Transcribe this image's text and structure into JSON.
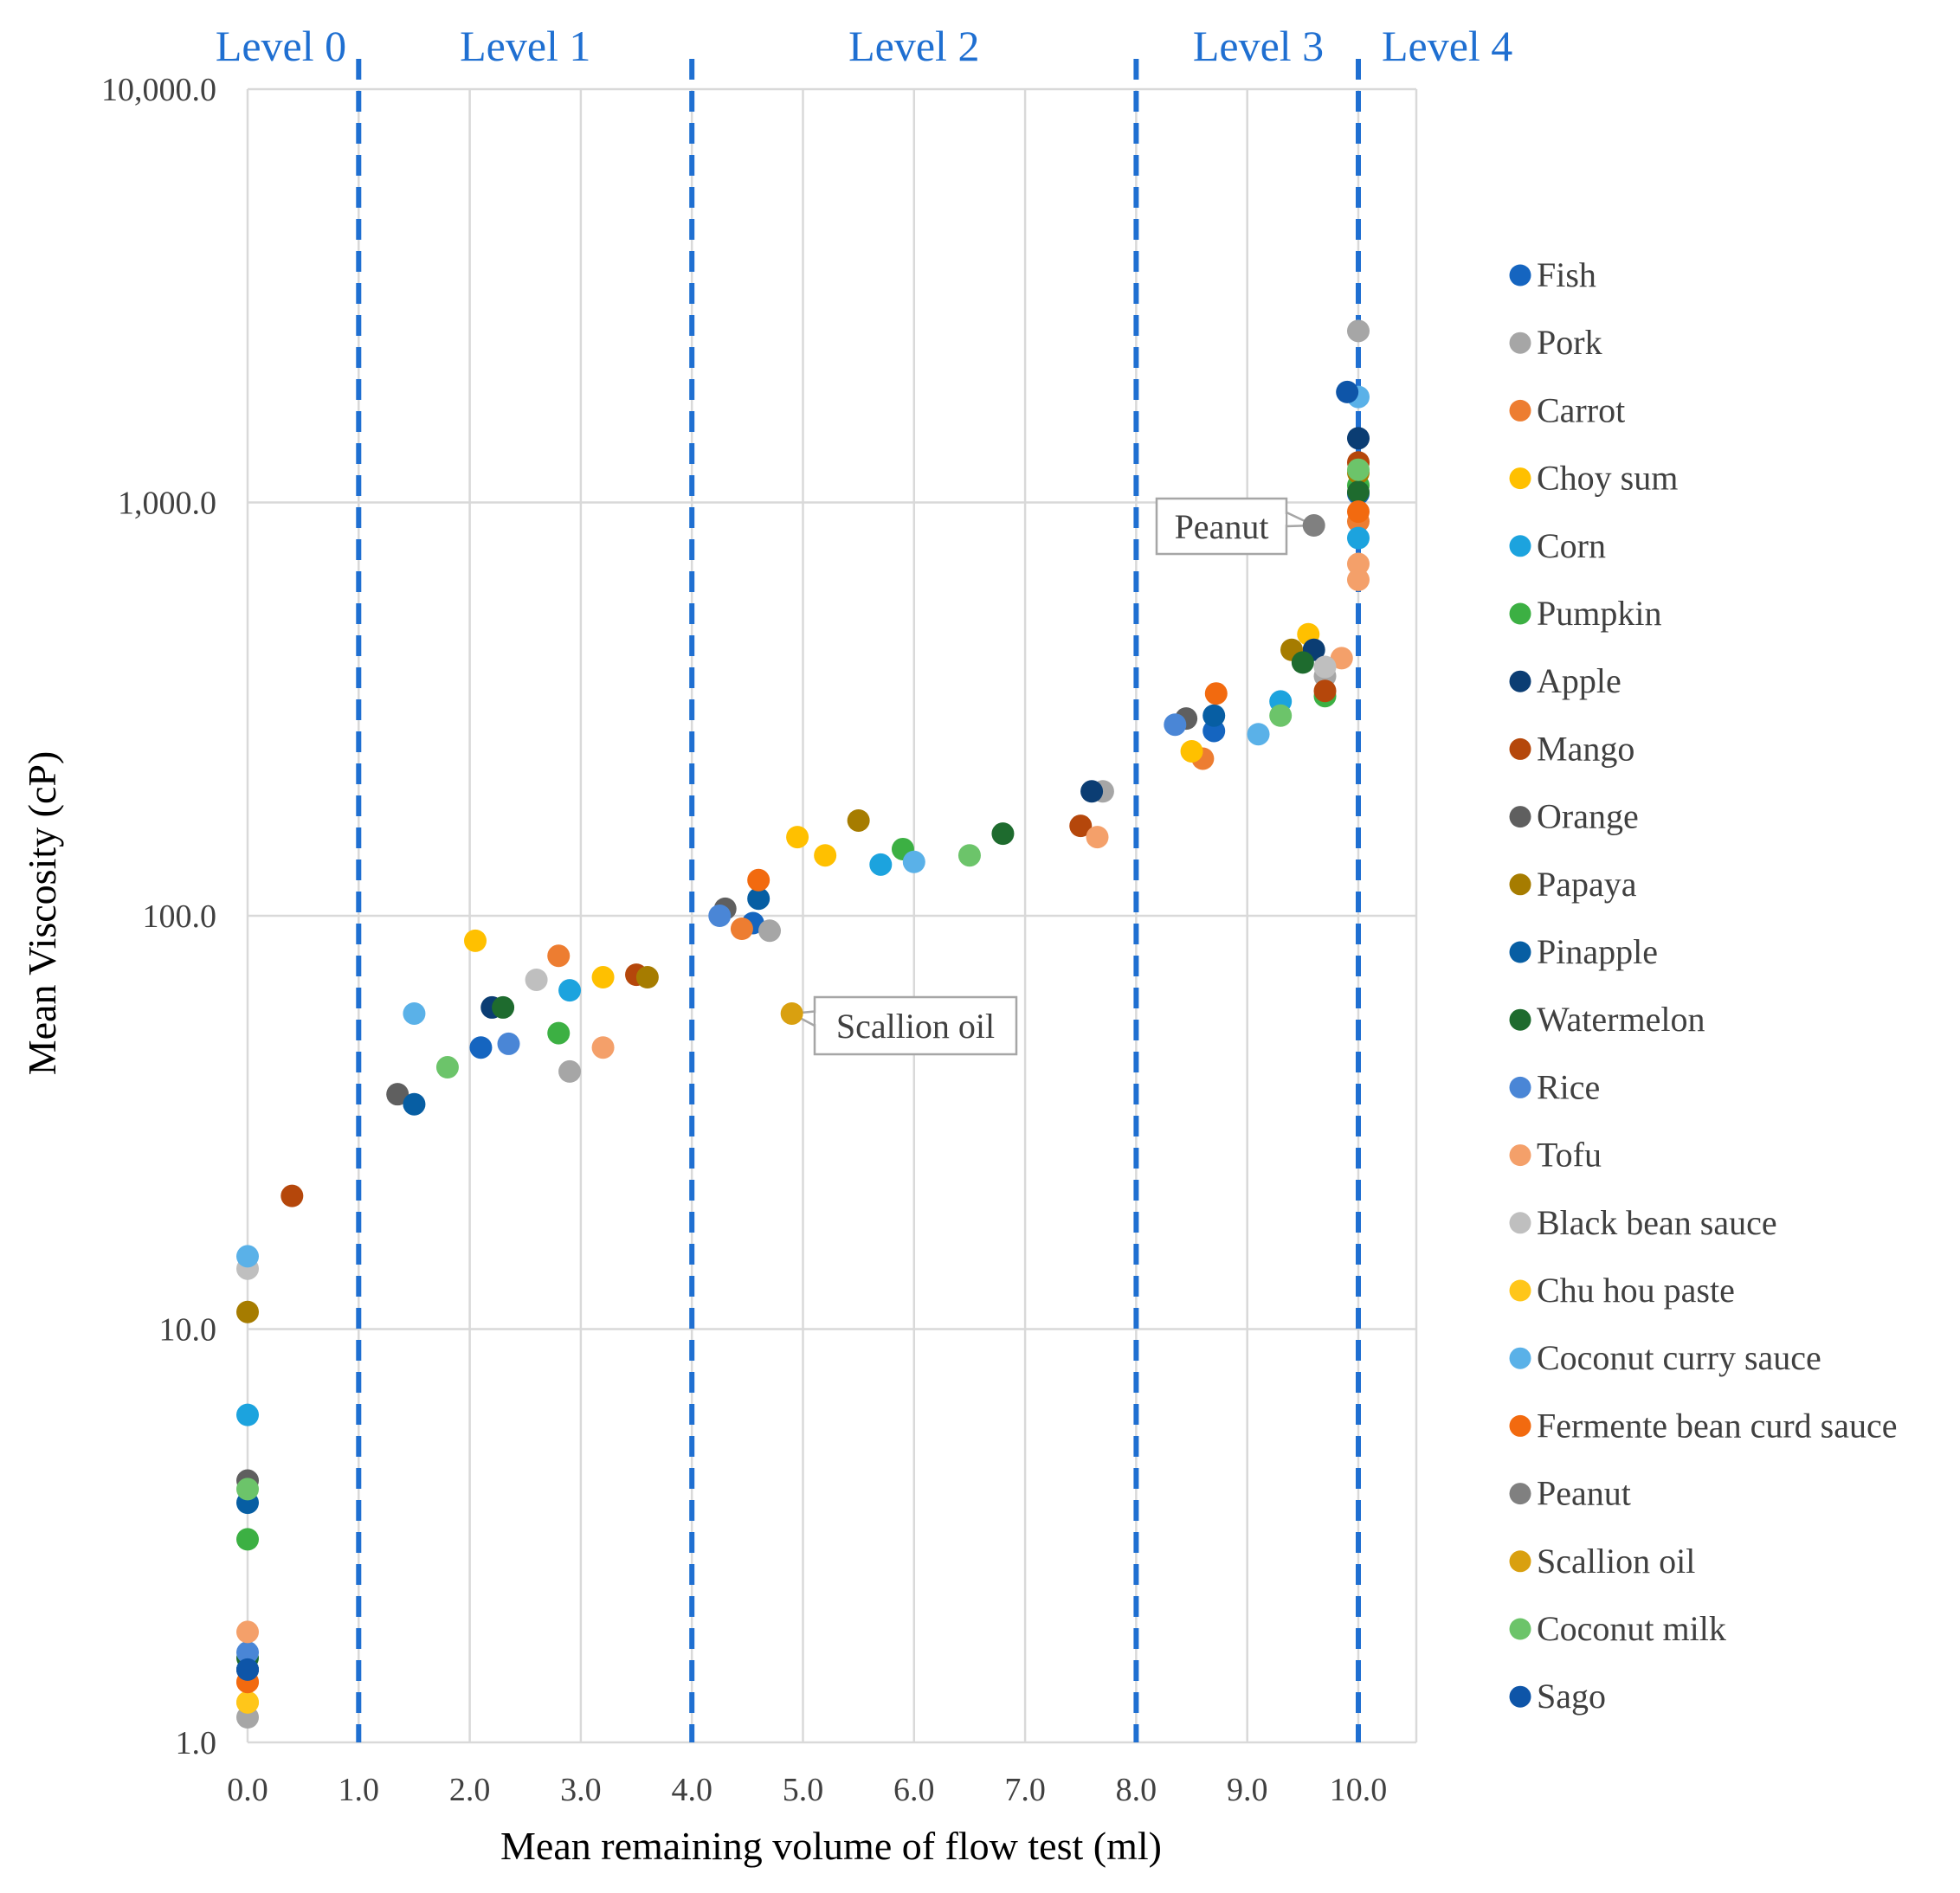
{
  "chart_data": {
    "type": "scatter",
    "title": "",
    "xlabel": "Mean remaining volume of flow test (ml)",
    "ylabel": "Mean Viscosity (cP)",
    "xlim": [
      0,
      10.5
    ],
    "ylim": [
      1,
      10000
    ],
    "y_scale": "log",
    "x_ticks": [
      "0.0",
      "1.0",
      "2.0",
      "3.0",
      "4.0",
      "5.0",
      "6.0",
      "7.0",
      "8.0",
      "9.0",
      "10.0"
    ],
    "y_ticks": [
      "1.0",
      "10.0",
      "100.0",
      "1,000.0",
      "10,000.0"
    ],
    "grid": true,
    "legend_position": "right",
    "level_boundaries": [
      1,
      4,
      8,
      10
    ],
    "level_boundary_color": "#1f6fd1",
    "levels": [
      {
        "label": "Level 0",
        "x": 0.3
      },
      {
        "label": "Level 1",
        "x": 2.5
      },
      {
        "label": "Level 2",
        "x": 6.0
      },
      {
        "label": "Level 3",
        "x": 9.1
      },
      {
        "label": "Level 4",
        "x": 10.8
      }
    ],
    "annotations": [
      {
        "text": "Peanut",
        "x": 9.6,
        "y": 880
      },
      {
        "text": "Scallion  oil",
        "x": 4.9,
        "y": 58
      }
    ],
    "series": [
      {
        "name": "Fish",
        "color": "#1565c0",
        "points": [
          [
            0,
            1.5
          ],
          [
            2.1,
            48
          ],
          [
            4.55,
            96
          ],
          [
            8.7,
            280
          ],
          [
            10,
            1050
          ]
        ]
      },
      {
        "name": "Pork",
        "color": "#a6a6a6",
        "points": [
          [
            0,
            1.15
          ],
          [
            2.9,
            42
          ],
          [
            4.7,
            92
          ],
          [
            7.7,
            200
          ],
          [
            9.7,
            380
          ],
          [
            10,
            2600
          ]
        ]
      },
      {
        "name": "Carrot",
        "color": "#ed7d31",
        "points": [
          [
            0,
            1.4
          ],
          [
            2.8,
            80
          ],
          [
            4.45,
            93
          ],
          [
            8.6,
            240
          ],
          [
            10,
            900
          ]
        ]
      },
      {
        "name": "Choy sum",
        "color": "#ffc000",
        "points": [
          [
            0,
            1.25
          ],
          [
            2.05,
            87
          ],
          [
            3.2,
            71
          ],
          [
            4.95,
            155
          ],
          [
            5.2,
            140
          ],
          [
            8.5,
            250
          ],
          [
            9.55,
            480
          ]
        ]
      },
      {
        "name": "Corn",
        "color": "#1ca3de",
        "points": [
          [
            0,
            6.2
          ],
          [
            2.9,
            66
          ],
          [
            5.7,
            133
          ],
          [
            9.3,
            330
          ],
          [
            10,
            820
          ]
        ]
      },
      {
        "name": "Pumpkin",
        "color": "#3cb043",
        "points": [
          [
            0,
            3.1
          ],
          [
            2.8,
            52
          ],
          [
            5.9,
            145
          ],
          [
            9.7,
            340
          ],
          [
            10,
            1100
          ]
        ]
      },
      {
        "name": "Apple",
        "color": "#0b3d73",
        "points": [
          [
            0,
            1.5
          ],
          [
            2.2,
            60
          ],
          [
            7.6,
            200
          ],
          [
            9.6,
            440
          ],
          [
            10,
            1430
          ]
        ]
      },
      {
        "name": "Mango",
        "color": "#b5470b",
        "points": [
          [
            0.4,
            21
          ],
          [
            3.5,
            72
          ],
          [
            7.5,
            165
          ],
          [
            9.7,
            350
          ],
          [
            10,
            1250
          ]
        ]
      },
      {
        "name": "Orange",
        "color": "#5f5f5f",
        "points": [
          [
            0,
            4.3
          ],
          [
            1.35,
            37
          ],
          [
            4.3,
            104
          ],
          [
            8.45,
            300
          ]
        ]
      },
      {
        "name": "Papaya",
        "color": "#a67c00",
        "points": [
          [
            0,
            11
          ],
          [
            3.6,
            71
          ],
          [
            5.5,
            170
          ],
          [
            9.4,
            440
          ],
          [
            10,
            1180
          ]
        ]
      },
      {
        "name": "Pinapple",
        "color": "#075ea3",
        "points": [
          [
            0,
            3.8
          ],
          [
            1.5,
            35
          ],
          [
            4.6,
            110
          ],
          [
            8.7,
            305
          ]
        ]
      },
      {
        "name": "Watermelon",
        "color": "#1e6b2e",
        "points": [
          [
            0,
            1.6
          ],
          [
            2.3,
            60
          ],
          [
            6.8,
            158
          ],
          [
            9.5,
            410
          ],
          [
            10,
            1060
          ]
        ]
      },
      {
        "name": "Rice",
        "color": "#4a86d6",
        "points": [
          [
            0,
            1.65
          ],
          [
            2.35,
            49
          ],
          [
            4.25,
            100
          ],
          [
            8.35,
            290
          ]
        ]
      },
      {
        "name": "Tofu",
        "color": "#f4a06a",
        "points": [
          [
            0,
            1.85
          ],
          [
            3.2,
            48
          ],
          [
            7.65,
            155
          ],
          [
            9.85,
            420
          ],
          [
            10,
            650
          ],
          [
            10,
            710
          ]
        ]
      },
      {
        "name": "Black bean sauce",
        "color": "#bfbfbf",
        "points": [
          [
            0,
            14
          ],
          [
            2.6,
            70
          ],
          [
            9.7,
            400
          ]
        ]
      },
      {
        "name": "Chu hou paste",
        "color": "#ffc61a",
        "points": [
          [
            0,
            1.25
          ]
        ]
      },
      {
        "name": "Coconut curry sauce",
        "color": "#5ab1e8",
        "points": [
          [
            0,
            15
          ],
          [
            1.5,
            58
          ],
          [
            6.0,
            135
          ],
          [
            9.1,
            275
          ],
          [
            10,
            1800
          ]
        ]
      },
      {
        "name": "Fermente bean curd sauce",
        "color": "#f26a0f",
        "points": [
          [
            0,
            1.4
          ],
          [
            4.6,
            122
          ],
          [
            8.72,
            345
          ],
          [
            10,
            950
          ]
        ]
      },
      {
        "name": "Peanut",
        "color": "#808080",
        "points": [
          [
            9.6,
            880
          ]
        ]
      },
      {
        "name": "Scallion oil",
        "color": "#d9a010",
        "points": [
          [
            4.9,
            58
          ]
        ]
      },
      {
        "name": "Coconut milk",
        "color": "#6cc46a",
        "points": [
          [
            0,
            4.1
          ],
          [
            1.8,
            43
          ],
          [
            6.5,
            140
          ],
          [
            9.3,
            305
          ],
          [
            10,
            1200
          ]
        ]
      },
      {
        "name": "Sago",
        "color": "#0e55a8",
        "points": [
          [
            0,
            1.5
          ],
          [
            9.9,
            1850
          ]
        ]
      }
    ]
  }
}
